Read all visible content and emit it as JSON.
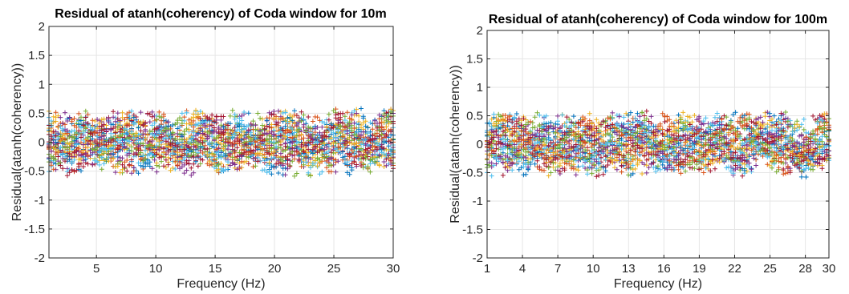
{
  "chart_data": [
    {
      "type": "scatter",
      "title": "Residual of atanh(coherency) of Coda window for 10m",
      "xlabel": "Frequency (Hz)",
      "ylabel": "Residual(atanh(coherency))",
      "xlim": [
        1,
        30
      ],
      "ylim": [
        -2,
        2
      ],
      "xticks": [
        5,
        10,
        15,
        20,
        25,
        30
      ],
      "yticks": [
        -2,
        -1.5,
        -1,
        -0.5,
        0,
        0.5,
        1,
        1.5,
        2
      ],
      "grid": true,
      "marker": "+",
      "data_range": [
        -0.95,
        0.98
      ],
      "series_colors": [
        "#0072BD",
        "#D95319",
        "#EDB120",
        "#7E2F8E",
        "#77AC30",
        "#4DBEEE",
        "#A2142F"
      ]
    },
    {
      "type": "scatter",
      "title": "Residual of atanh(coherency) of Coda window for 100m",
      "xlabel": "Frequency (Hz)",
      "ylabel": "Residual(atanh(coherency))",
      "xlim": [
        1,
        30
      ],
      "ylim": [
        -2,
        2
      ],
      "xticks": [
        1,
        4,
        7,
        10,
        13,
        16,
        19,
        22,
        25,
        28,
        30
      ],
      "yticks": [
        -2,
        -1.5,
        -1,
        -0.5,
        0,
        0.5,
        1,
        1.5,
        2
      ],
      "grid": true,
      "marker": "+",
      "data_range": [
        -0.95,
        0.95
      ],
      "series_colors": [
        "#0072BD",
        "#D95319",
        "#EDB120",
        "#7E2F8E",
        "#77AC30",
        "#4DBEEE",
        "#A2142F"
      ]
    }
  ]
}
